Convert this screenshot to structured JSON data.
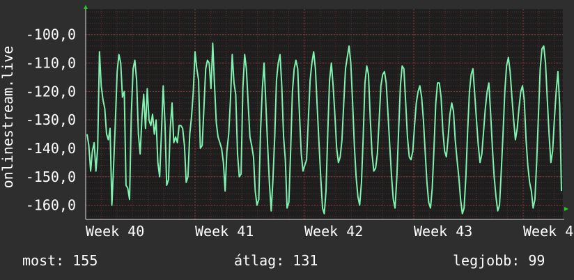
{
  "chart_data": {
    "type": "line",
    "ylabel": "onlinestream.live",
    "yticks": [
      "-100,0",
      "-110,0",
      "-120,0",
      "-130,0",
      "-140,0",
      "-150,0",
      "-160,0"
    ],
    "ytick_values": [
      -100,
      -110,
      -120,
      -130,
      -140,
      -150,
      -160
    ],
    "ylim": [
      -165,
      -91
    ],
    "xticks": [
      "Week 40",
      "Week 41",
      "Week 42",
      "Week 43",
      "Week 4"
    ],
    "grid": true,
    "colors": {
      "background": "#2e2e2e",
      "plot_background": "#1e1e1e",
      "grid": "#5a3030",
      "line": "#7ff2b0",
      "axis_arrow": "#22cc22"
    },
    "series": [
      {
        "values": [
          -135,
          -139,
          -148,
          -141,
          -138,
          -148,
          -140,
          -106,
          -118,
          -123,
          -126,
          -135,
          -137,
          -133,
          -160,
          -146,
          -130,
          -113,
          -107,
          -110,
          -122,
          -120,
          -153,
          -154,
          -158,
          -128,
          -112,
          -109,
          -116,
          -135,
          -142,
          -129,
          -121,
          -133,
          -119,
          -130,
          -132,
          -128,
          -135,
          -130,
          -145,
          -150,
          -135,
          -118,
          -131,
          -153,
          -151,
          -133,
          -124,
          -138,
          -136,
          -138,
          -132,
          -132,
          -133,
          -139,
          -152,
          -150,
          -135,
          -129,
          -120,
          -106,
          -112,
          -116,
          -140,
          -139,
          -126,
          -112,
          -109,
          -110,
          -119,
          -103,
          -118,
          -131,
          -136,
          -138,
          -140,
          -145,
          -155,
          -141,
          -135,
          -123,
          -107,
          -117,
          -121,
          -142,
          -150,
          -149,
          -119,
          -107,
          -112,
          -124,
          -136,
          -139,
          -143,
          -155,
          -160,
          -158,
          -134,
          -119,
          -110,
          -124,
          -139,
          -152,
          -162,
          -151,
          -136,
          -116,
          -110,
          -107,
          -118,
          -136,
          -144,
          -161,
          -159,
          -141,
          -120,
          -112,
          -109,
          -112,
          -128,
          -142,
          -148,
          -146,
          -144,
          -130,
          -116,
          -110,
          -106,
          -112,
          -125,
          -138,
          -150,
          -161,
          -163,
          -155,
          -134,
          -116,
          -110,
          -118,
          -128,
          -140,
          -145,
          -143,
          -137,
          -124,
          -112,
          -108,
          -104,
          -110,
          -124,
          -139,
          -150,
          -157,
          -160,
          -152,
          -136,
          -117,
          -111,
          -114,
          -130,
          -142,
          -148,
          -147,
          -142,
          -130,
          -118,
          -114,
          -113,
          -117,
          -128,
          -139,
          -150,
          -158,
          -161,
          -150,
          -134,
          -118,
          -111,
          -112,
          -124,
          -136,
          -143,
          -144,
          -141,
          -132,
          -124,
          -120,
          -118,
          -122,
          -130,
          -141,
          -152,
          -159,
          -161,
          -154,
          -140,
          -124,
          -117,
          -117,
          -122,
          -134,
          -141,
          -143,
          -136,
          -128,
          -124,
          -127,
          -137,
          -144,
          -150,
          -158,
          -163,
          -161,
          -150,
          -134,
          -120,
          -114,
          -112,
          -121,
          -130,
          -139,
          -145,
          -142,
          -134,
          -126,
          -120,
          -117,
          -128,
          -140,
          -150,
          -157,
          -162,
          -160,
          -148,
          -135,
          -120,
          -111,
          -108,
          -113,
          -122,
          -130,
          -137,
          -133,
          -126,
          -120,
          -118,
          -123,
          -137,
          -146,
          -152,
          -155,
          -161,
          -158,
          -145,
          -128,
          -112,
          -105,
          -104,
          -110,
          -123,
          -135,
          -145,
          -141,
          -130,
          -120,
          -113,
          -125,
          -155
        ]
      }
    ]
  },
  "stats": {
    "now": "most: 155",
    "avg": "átlag: 131",
    "max": "legjobb: 99"
  }
}
